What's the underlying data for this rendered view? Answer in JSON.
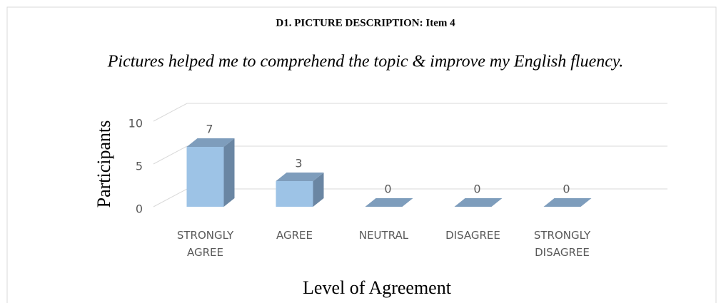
{
  "chart_data": {
    "type": "bar3d",
    "title": "D1. PICTURE DESCRIPTION: Item 4",
    "subtitle": "Pictures helped me to comprehend the topic & improve my English fluency.",
    "y_label": "Participants",
    "x_label": "Level of Agreement",
    "categories": [
      "STRONGLY AGREE",
      "AGREE",
      "NEUTRAL",
      "DISAGREE",
      "STRONGLY DISAGREE"
    ],
    "values": [
      7,
      3,
      0,
      0,
      0
    ],
    "color": "#9dc3e6",
    "ylim": [
      0,
      10
    ],
    "yticks": [
      0,
      5,
      10
    ],
    "grid": true
  }
}
